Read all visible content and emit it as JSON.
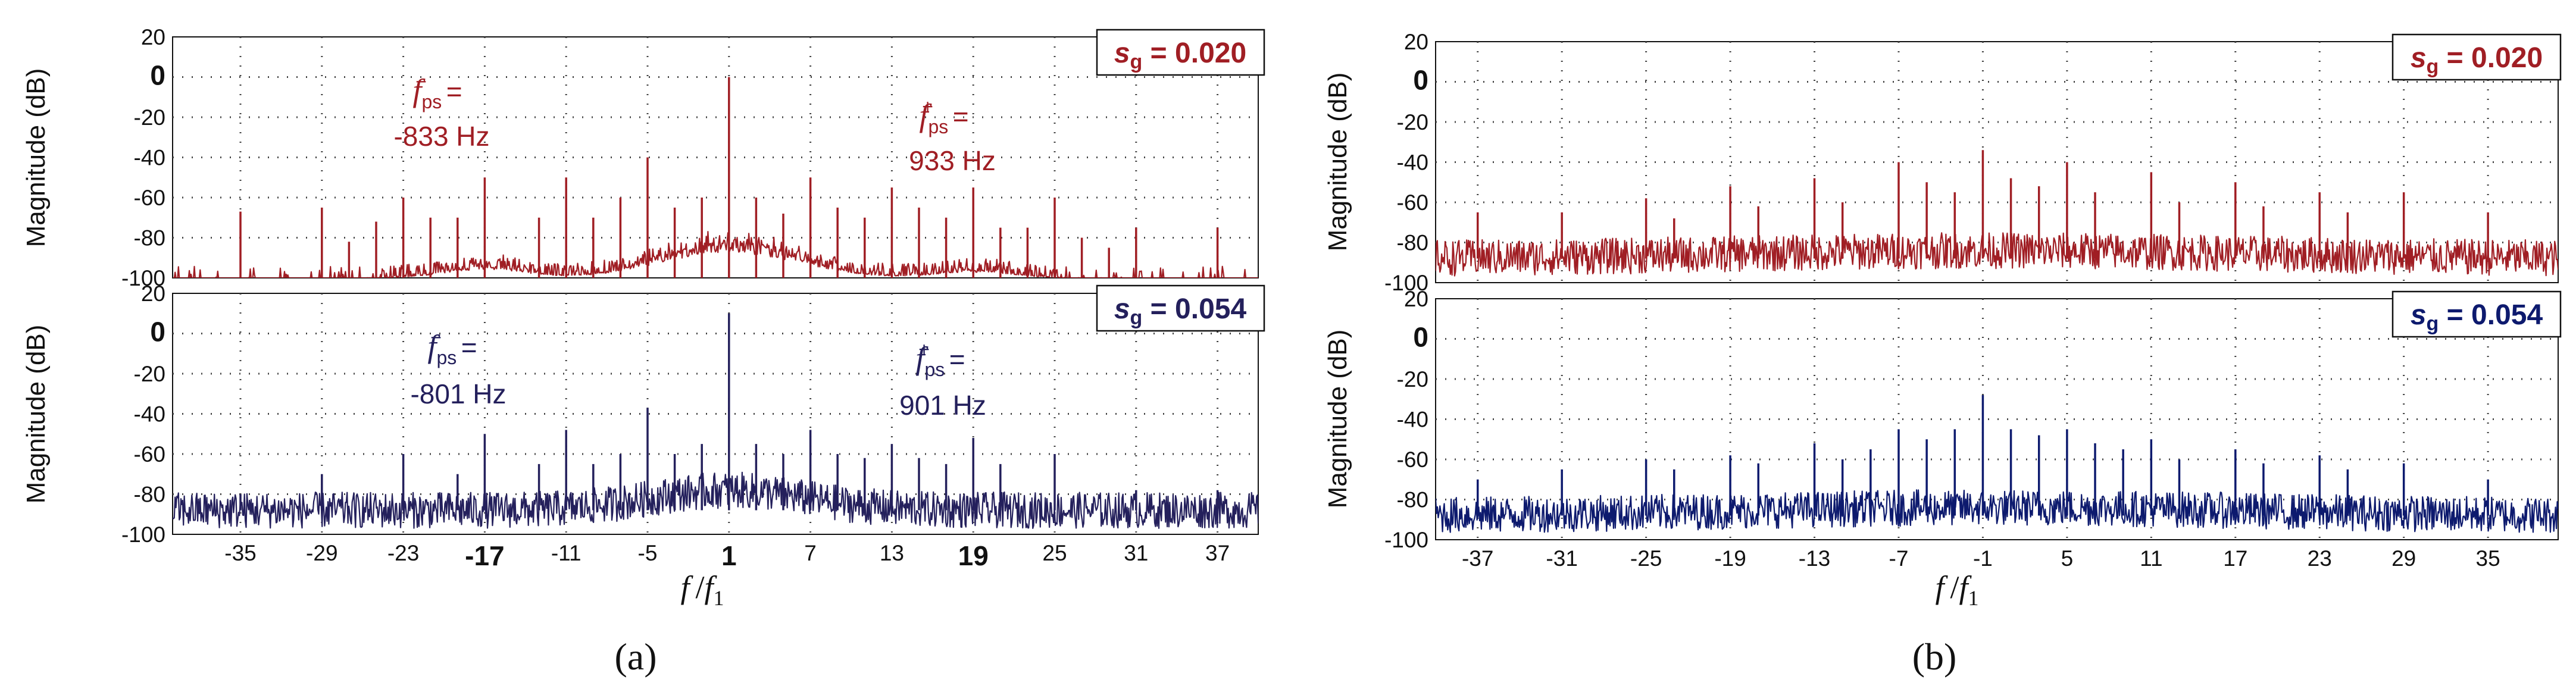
{
  "colors": {
    "red": "#a01e24",
    "blue": "#24205c",
    "navy": "#0d1a6e",
    "grid": "#444444"
  },
  "labels": {
    "y_axis": "Magnitude (dB)",
    "x_axis_f": "f",
    "x_axis_slash": "/",
    "x_axis_f1": "f",
    "x_axis_sub": "1",
    "panel_a": "(a)",
    "panel_b": "(b)"
  },
  "chart_data": [
    {
      "type": "line",
      "panel": "a",
      "subplot": "top",
      "title": "",
      "badge": {
        "s": "s",
        "sub": "g",
        "text": " = 0.020"
      },
      "xlabel": "f /f1",
      "ylabel": "Magnitude (dB)",
      "xlim": [
        -40,
        40
      ],
      "ylim": [
        -100,
        20
      ],
      "yticks": [
        -100,
        -80,
        -60,
        -40,
        -20,
        0,
        20
      ],
      "noise_floor_db": -100,
      "series": [
        {
          "name": "spectrum s_g = 0.020",
          "peaks": [
            [
              1,
              0
            ],
            [
              -17,
              -50
            ],
            [
              19,
              -55
            ],
            [
              -5,
              -40
            ],
            [
              -11,
              -50
            ],
            [
              7,
              -50
            ],
            [
              13,
              -55
            ],
            [
              -23,
              -60
            ],
            [
              25,
              -60
            ],
            [
              -29,
              -65
            ],
            [
              31,
              -75
            ],
            [
              -35,
              -67
            ],
            [
              37,
              -75
            ],
            [
              -1,
              -60
            ],
            [
              3,
              -60
            ],
            [
              -3,
              -65
            ],
            [
              5,
              -68
            ],
            [
              9,
              -65
            ],
            [
              -7,
              -60
            ],
            [
              -9,
              -70
            ],
            [
              -13,
              -70
            ],
            [
              15,
              -65
            ],
            [
              11,
              -70
            ],
            [
              17,
              -70
            ],
            [
              -19,
              -70
            ],
            [
              21,
              -75
            ],
            [
              -21,
              -70
            ],
            [
              23,
              -75
            ],
            [
              -25,
              -72
            ],
            [
              27,
              -80
            ],
            [
              -27,
              -82
            ],
            [
              29,
              -85
            ]
          ]
        }
      ],
      "annotations": [
        {
          "f": "f",
          "sub": "ps",
          "sup": "−",
          "eq": " =",
          "value": "-833 Hz"
        },
        {
          "f": "f",
          "sub": "ps",
          "sup": "+",
          "eq": " =",
          "value": "933 Hz"
        }
      ]
    },
    {
      "type": "line",
      "panel": "a",
      "subplot": "bottom",
      "title": "",
      "badge": {
        "s": "s",
        "sub": "g",
        "text": " = 0.054"
      },
      "xlabel": "f /f1",
      "ylabel": "Magnitude (dB)",
      "xlim": [
        -40,
        40
      ],
      "ylim": [
        -100,
        20
      ],
      "xticks": [
        -35,
        -29,
        -23,
        -17,
        -11,
        -5,
        1,
        7,
        13,
        19,
        25,
        31,
        37
      ],
      "xticks_bold": [
        -17,
        1,
        19
      ],
      "yticks": [
        -100,
        -80,
        -60,
        -40,
        -20,
        0,
        20
      ],
      "noise_floor_db": -88,
      "series": [
        {
          "name": "spectrum s_g = 0.054",
          "peaks": [
            [
              1,
              10
            ],
            [
              -17,
              -50
            ],
            [
              19,
              -52
            ],
            [
              -5,
              -37
            ],
            [
              -11,
              -48
            ],
            [
              7,
              -48
            ],
            [
              13,
              -55
            ],
            [
              -23,
              -60
            ],
            [
              25,
              -60
            ],
            [
              -29,
              -70
            ],
            [
              31,
              -78
            ],
            [
              -35,
              -80
            ],
            [
              37,
              -78
            ],
            [
              -1,
              -55
            ],
            [
              3,
              -55
            ],
            [
              5,
              -60
            ],
            [
              -3,
              -60
            ],
            [
              9,
              -60
            ],
            [
              -7,
              -60
            ],
            [
              -13,
              -65
            ],
            [
              15,
              -62
            ],
            [
              11,
              -62
            ],
            [
              17,
              -65
            ],
            [
              -19,
              -70
            ],
            [
              21,
              -65
            ],
            [
              -9,
              -65
            ]
          ]
        }
      ],
      "annotations": [
        {
          "f": "f",
          "sub": "ps",
          "sup": "−",
          "eq": " =",
          "value": "-801 Hz"
        },
        {
          "f": "f",
          "sub": "ps",
          "sup": "+",
          "eq": " =",
          "value": "901 Hz"
        }
      ]
    },
    {
      "type": "line",
      "panel": "b",
      "subplot": "top",
      "title": "",
      "badge": {
        "s": "s",
        "sub": "g",
        "text": " = 0.020"
      },
      "xlabel": "f /f1",
      "ylabel": "Magnitude (dB)",
      "xlim": [
        -40,
        40
      ],
      "ylim": [
        -100,
        20
      ],
      "yticks": [
        -100,
        -80,
        -60,
        -40,
        -20,
        0,
        20
      ],
      "noise_floor_db": -88,
      "series": [
        {
          "name": "spectrum s_g = 0.020",
          "peaks": [
            [
              -1,
              -34
            ],
            [
              -7,
              -40
            ],
            [
              5,
              -40
            ],
            [
              -13,
              -48
            ],
            [
              11,
              -45
            ],
            [
              17,
              -50
            ],
            [
              -19,
              -52
            ],
            [
              23,
              -55
            ],
            [
              -25,
              -58
            ],
            [
              29,
              -55
            ],
            [
              -31,
              -65
            ],
            [
              35,
              -65
            ],
            [
              -37,
              -65
            ],
            [
              1,
              -48
            ],
            [
              -5,
              -50
            ],
            [
              7,
              -55
            ],
            [
              -3,
              -55
            ],
            [
              3,
              -52
            ],
            [
              13,
              -60
            ],
            [
              -11,
              -60
            ],
            [
              -17,
              -62
            ],
            [
              19,
              -62
            ],
            [
              25,
              -65
            ],
            [
              -23,
              -68
            ]
          ]
        }
      ]
    },
    {
      "type": "line",
      "panel": "b",
      "subplot": "bottom",
      "title": "",
      "badge": {
        "s": "s",
        "sub": "g",
        "text": " = 0.054"
      },
      "xlabel": "f /f1",
      "ylabel": "Magnitude (dB)",
      "xlim": [
        -40,
        40
      ],
      "ylim": [
        -100,
        20
      ],
      "xticks": [
        -37,
        -31,
        -25,
        -19,
        -13,
        -7,
        -1,
        5,
        11,
        17,
        23,
        29,
        35
      ],
      "yticks": [
        -100,
        -80,
        -60,
        -40,
        -20,
        0,
        20
      ],
      "noise_floor_db": -88,
      "series": [
        {
          "name": "spectrum s_g = 0.054",
          "peaks": [
            [
              -1,
              -28
            ],
            [
              -7,
              -45
            ],
            [
              5,
              -45
            ],
            [
              -13,
              -52
            ],
            [
              11,
              -50
            ],
            [
              17,
              -55
            ],
            [
              -19,
              -58
            ],
            [
              23,
              -58
            ],
            [
              -25,
              -60
            ],
            [
              29,
              -62
            ],
            [
              -31,
              -65
            ],
            [
              35,
              -70
            ],
            [
              -37,
              -70
            ],
            [
              1,
              -45
            ],
            [
              -3,
              -45
            ],
            [
              3,
              -48
            ],
            [
              -5,
              -50
            ],
            [
              7,
              -52
            ],
            [
              -9,
              -55
            ],
            [
              9,
              -55
            ],
            [
              13,
              -60
            ],
            [
              -11,
              -60
            ],
            [
              -17,
              -62
            ],
            [
              19,
              -62
            ],
            [
              25,
              -65
            ],
            [
              -23,
              -65
            ]
          ]
        }
      ]
    }
  ]
}
